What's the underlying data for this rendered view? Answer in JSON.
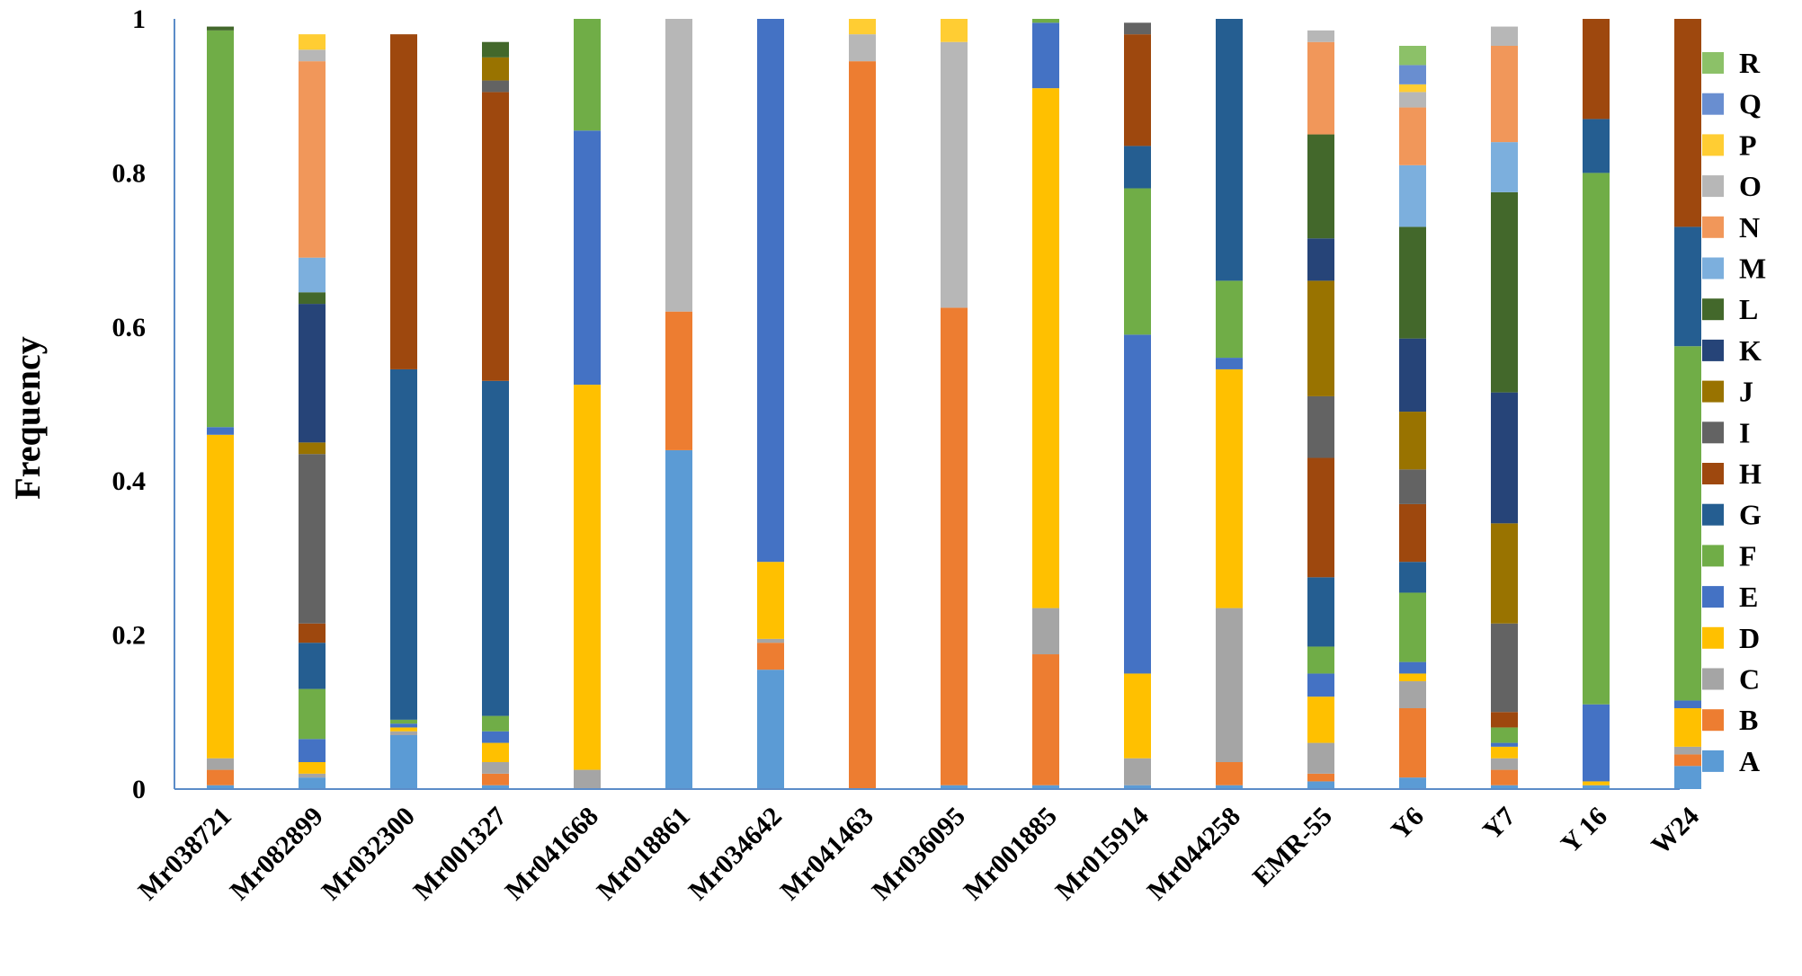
{
  "chart_data": {
    "type": "bar",
    "stacked": true,
    "title": "",
    "xlabel": "",
    "ylabel": "Frequency",
    "ylim": [
      0,
      1
    ],
    "yticks": [
      "0",
      "0.2",
      "0.4",
      "0.6",
      "0.8",
      "1"
    ],
    "yticks_values": [
      0,
      0.2,
      0.4,
      0.6,
      0.8,
      1
    ],
    "grid": false,
    "legend_position": "right",
    "categories": [
      "Mr038721",
      "Mr082899",
      "Mr032300",
      "Mr001327",
      "Mr041668",
      "Mr018861",
      "Mr034642",
      "Mr041463",
      "Mr036095",
      "Mr001885",
      "Mr015914",
      "Mr044258",
      "EMR-55",
      "Y6",
      "Y7",
      "Y16",
      "W24"
    ],
    "category_labels": [
      "Mr038721",
      "Mr082899",
      "Mr032300",
      "Mr001327",
      "Mr041668",
      "Mr018861",
      "Mr034642",
      "Mr041463",
      "Mr036095",
      "Mr001885",
      "Mr015914",
      "Mr044258",
      "EMR-55",
      "Y6",
      "Y7",
      "Y 16",
      "W24"
    ],
    "colors": {
      "A": "#5b9bd5",
      "B": "#ed7d31",
      "C": "#a5a5a5",
      "D": "#ffc000",
      "E": "#4472c4",
      "F": "#70ad47",
      "G": "#255e91",
      "H": "#9e480e",
      "I": "#636363",
      "J": "#997300",
      "K": "#264478",
      "L": "#43682b",
      "M": "#7cafdd",
      "N": "#f1975a",
      "O": "#b7b7b7",
      "P": "#ffcd33",
      "Q": "#698ed0",
      "R": "#8cc168"
    },
    "series": [
      {
        "name": "A",
        "values": [
          0.005,
          0.015,
          0.07,
          0.005,
          0.0,
          0.44,
          0.155,
          0.0,
          0.005,
          0.005,
          0.005,
          0.005,
          0.01,
          0.015,
          0.005,
          0.005,
          0.03
        ]
      },
      {
        "name": "B",
        "values": [
          0.02,
          0.0,
          0.0,
          0.015,
          0.0,
          0.18,
          0.035,
          0.945,
          0.62,
          0.17,
          0.0,
          0.03,
          0.01,
          0.09,
          0.02,
          0.0,
          0.015
        ]
      },
      {
        "name": "C",
        "values": [
          0.015,
          0.005,
          0.005,
          0.015,
          0.025,
          0.0,
          0.005,
          0.0,
          0.0,
          0.06,
          0.035,
          0.2,
          0.04,
          0.035,
          0.015,
          0.0,
          0.01
        ]
      },
      {
        "name": "D",
        "values": [
          0.42,
          0.015,
          0.005,
          0.025,
          0.5,
          0.0,
          0.1,
          0.0,
          0.0,
          0.675,
          0.11,
          0.31,
          0.06,
          0.01,
          0.015,
          0.005,
          0.05
        ]
      },
      {
        "name": "E",
        "values": [
          0.01,
          0.03,
          0.005,
          0.015,
          0.33,
          0.0,
          0.705,
          0.0,
          0.0,
          0.085,
          0.44,
          0.015,
          0.03,
          0.015,
          0.005,
          0.1,
          0.01
        ]
      },
      {
        "name": "F",
        "values": [
          0.515,
          0.065,
          0.005,
          0.02,
          0.145,
          0.0,
          0.0,
          0.0,
          0.0,
          0.005,
          0.19,
          0.1,
          0.035,
          0.09,
          0.02,
          0.69,
          0.46
        ]
      },
      {
        "name": "G",
        "values": [
          0.0,
          0.06,
          0.455,
          0.435,
          0.0,
          0.0,
          0.0,
          0.0,
          0.0,
          0.0,
          0.055,
          0.34,
          0.09,
          0.04,
          0.0,
          0.07,
          0.155
        ]
      },
      {
        "name": "H",
        "values": [
          0.0,
          0.025,
          0.435,
          0.375,
          0.0,
          0.0,
          0.0,
          0.0,
          0.0,
          0.0,
          0.145,
          0.0,
          0.155,
          0.075,
          0.02,
          0.13,
          0.27
        ]
      },
      {
        "name": "I",
        "values": [
          0.0,
          0.22,
          0.0,
          0.015,
          0.0,
          0.0,
          0.0,
          0.0,
          0.0,
          0.0,
          0.015,
          0.0,
          0.08,
          0.045,
          0.115,
          0.0,
          0.0
        ]
      },
      {
        "name": "J",
        "values": [
          0.0,
          0.015,
          0.0,
          0.03,
          0.0,
          0.0,
          0.0,
          0.0,
          0.0,
          0.0,
          0.0,
          0.0,
          0.15,
          0.075,
          0.13,
          0.0,
          0.0
        ]
      },
      {
        "name": "K",
        "values": [
          0.0,
          0.18,
          0.0,
          0.0,
          0.0,
          0.0,
          0.0,
          0.0,
          0.0,
          0.0,
          0.0,
          0.0,
          0.055,
          0.095,
          0.17,
          0.0,
          0.0
        ]
      },
      {
        "name": "L",
        "values": [
          0.005,
          0.015,
          0.0,
          0.02,
          0.0,
          0.0,
          0.0,
          0.0,
          0.0,
          0.0,
          0.0,
          0.0,
          0.135,
          0.145,
          0.26,
          0.0,
          0.0
        ]
      },
      {
        "name": "M",
        "values": [
          0.0,
          0.045,
          0.0,
          0.0,
          0.0,
          0.0,
          0.0,
          0.0,
          0.0,
          0.0,
          0.0,
          0.0,
          0.0,
          0.08,
          0.065,
          0.0,
          0.0
        ]
      },
      {
        "name": "N",
        "values": [
          0.0,
          0.255,
          0.0,
          0.0,
          0.0,
          0.0,
          0.0,
          0.0,
          0.0,
          0.0,
          0.0,
          0.0,
          0.12,
          0.075,
          0.125,
          0.0,
          0.0
        ]
      },
      {
        "name": "O",
        "values": [
          0.0,
          0.015,
          0.0,
          0.0,
          0.0,
          0.38,
          0.0,
          0.035,
          0.345,
          0.0,
          0.0,
          0.0,
          0.015,
          0.02,
          0.025,
          0.0,
          0.0
        ]
      },
      {
        "name": "P",
        "values": [
          0.0,
          0.02,
          0.0,
          0.0,
          0.0,
          0.0,
          0.0,
          0.02,
          0.03,
          0.0,
          0.0,
          0.0,
          0.0,
          0.01,
          0.0,
          0.0,
          0.0
        ]
      },
      {
        "name": "Q",
        "values": [
          0.0,
          0.0,
          0.0,
          0.0,
          0.0,
          0.0,
          0.0,
          0.0,
          0.0,
          0.0,
          0.0,
          0.0,
          0.0,
          0.025,
          0.0,
          0.0,
          0.0
        ]
      },
      {
        "name": "R",
        "values": [
          0.0,
          0.0,
          0.0,
          0.0,
          0.0,
          0.0,
          0.0,
          0.0,
          0.0,
          0.0,
          0.0,
          0.0,
          0.0,
          0.025,
          0.0,
          0.0,
          0.0
        ]
      }
    ]
  }
}
